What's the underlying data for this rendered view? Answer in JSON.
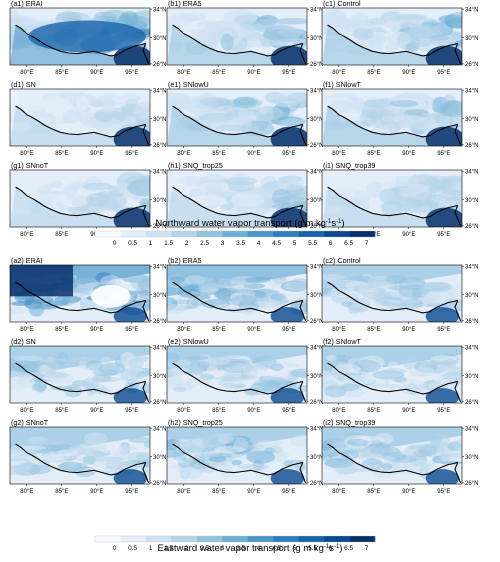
{
  "colors": {
    "scale": [
      "#f7fbff",
      "#e3eef9",
      "#cfe1f2",
      "#b5d4e9",
      "#93c3df",
      "#6daed5",
      "#4b97c9",
      "#2f7ebc",
      "#1864aa",
      "#0a4a90",
      "#08306b"
    ],
    "border": "#000000"
  },
  "lon_ticks": [
    "80°E",
    "85°E",
    "90°E",
    "95°E"
  ],
  "lat_ticks": [
    "34°N",
    "30°N",
    "26°N"
  ],
  "colorbar": {
    "ticks": [
      "0",
      "0.5",
      "1",
      "1.5",
      "2",
      "2.5",
      "3",
      "3.5",
      "4",
      "4.5",
      "5",
      "5.5",
      "6",
      "6.5",
      "7"
    ]
  },
  "sections": [
    {
      "variable": "northward",
      "colorbar_label_main": "Northward water vapor transport (g m kg",
      "colorbar_label_sup": "-1",
      "colorbar_label_mid": "s",
      "colorbar_label_sup2": "-1",
      "colorbar_label_end": ")",
      "panels": [
        {
          "label": "(a1) ERAI",
          "mean_intensity": 0.7
        },
        {
          "label": "(b1) ERA5",
          "mean_intensity": 0.55
        },
        {
          "label": "(c1) Control",
          "mean_intensity": 0.5
        },
        {
          "label": "(d1) SN",
          "mean_intensity": 0.35
        },
        {
          "label": "(e1) SNlowU",
          "mean_intensity": 0.55
        },
        {
          "label": "(f1) SNlowT",
          "mean_intensity": 0.5
        },
        {
          "label": "(g1) SNnoT",
          "mean_intensity": 0.4
        },
        {
          "label": "(h1) SNQ_trop25",
          "mean_intensity": 0.42
        },
        {
          "label": "(i1) SNQ_trop39",
          "mean_intensity": 0.42
        }
      ]
    },
    {
      "variable": "eastward",
      "colorbar_label_main": "Eastward water vapor transport (g m kg",
      "colorbar_label_sup": "-1",
      "colorbar_label_mid": "s",
      "colorbar_label_sup2": "-1",
      "colorbar_label_end": ")",
      "panels": [
        {
          "label": "(a2) ERAI",
          "mean_intensity": 0.75
        },
        {
          "label": "(b2) ERA5",
          "mean_intensity": 0.6
        },
        {
          "label": "(c2) Control",
          "mean_intensity": 0.5
        },
        {
          "label": "(d2) SN",
          "mean_intensity": 0.5
        },
        {
          "label": "(e2) SNlowU",
          "mean_intensity": 0.48
        },
        {
          "label": "(f2) SNlowT",
          "mean_intensity": 0.5
        },
        {
          "label": "(g2) SNnoT",
          "mean_intensity": 0.48
        },
        {
          "label": "(h2) SNQ_trop25",
          "mean_intensity": 0.55
        },
        {
          "label": "(i2) SNQ_trop39",
          "mean_intensity": 0.55
        }
      ]
    }
  ]
}
